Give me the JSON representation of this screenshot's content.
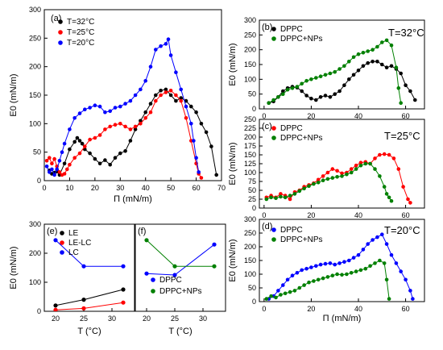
{
  "chart_data": [
    {
      "panel": "(a)",
      "type": "line",
      "xlabel": "Π (mN/m)",
      "ylabel": "E0 (mN/m)",
      "xlim": [
        0,
        70
      ],
      "ylim": [
        0,
        300
      ],
      "xticks": [
        "0",
        "10",
        "20",
        "30",
        "40",
        "50",
        "60",
        "70"
      ],
      "yticks": [
        "0",
        "50",
        "100",
        "150",
        "200",
        "250",
        "300"
      ],
      "legend_position": "top-left",
      "series": [
        {
          "name": "T=32°C",
          "color": "#000000",
          "x": [
            2,
            3,
            4,
            5,
            6,
            8,
            10,
            12,
            13,
            14,
            15,
            16,
            18,
            20,
            22,
            24,
            26,
            28,
            30,
            32,
            34,
            36,
            38,
            40,
            42,
            44,
            46,
            48,
            50,
            52,
            54,
            56,
            58,
            60,
            62,
            64,
            66,
            68
          ],
          "y": [
            18,
            12,
            14,
            16,
            10,
            30,
            55,
            68,
            75,
            70,
            65,
            55,
            48,
            38,
            30,
            36,
            28,
            40,
            48,
            52,
            70,
            90,
            105,
            120,
            135,
            150,
            158,
            160,
            150,
            140,
            145,
            140,
            130,
            120,
            100,
            85,
            60,
            10
          ]
        },
        {
          "name": "T=25°C",
          "color": "#ff0000",
          "x": [
            1,
            2,
            3,
            4,
            5,
            6,
            7,
            8,
            9,
            10,
            12,
            14,
            16,
            18,
            20,
            22,
            24,
            26,
            28,
            30,
            32,
            34,
            36,
            38,
            40,
            42,
            44,
            46,
            48,
            50,
            52,
            54,
            56,
            58,
            60,
            61,
            62
          ],
          "y": [
            35,
            40,
            30,
            38,
            25,
            15,
            10,
            12,
            20,
            28,
            40,
            48,
            60,
            72,
            75,
            80,
            90,
            95,
            98,
            100,
            95,
            90,
            95,
            100,
            110,
            120,
            140,
            150,
            155,
            158,
            150,
            140,
            110,
            70,
            30,
            12,
            5
          ]
        },
        {
          "name": "T=20°C",
          "color": "#0000ff",
          "x": [
            1,
            2,
            3,
            4,
            5,
            6,
            7,
            8,
            10,
            12,
            14,
            16,
            18,
            20,
            22,
            24,
            26,
            28,
            30,
            32,
            34,
            36,
            38,
            40,
            42,
            44,
            46,
            48,
            49,
            50,
            52,
            54,
            56,
            58,
            59,
            60,
            61
          ],
          "y": [
            25,
            15,
            20,
            10,
            20,
            35,
            50,
            65,
            90,
            110,
            118,
            125,
            128,
            132,
            130,
            120,
            122,
            128,
            130,
            135,
            140,
            150,
            160,
            175,
            200,
            230,
            236,
            240,
            248,
            220,
            190,
            160,
            130,
            100,
            70,
            40,
            15
          ]
        }
      ]
    },
    {
      "panel": "(b)",
      "type": "line",
      "title": "T=32°C",
      "xlabel": "",
      "ylabel": "E0 (mN/m)",
      "xlim": [
        -2,
        68
      ],
      "ylim": [
        0,
        300
      ],
      "xticks": [
        "0",
        "20",
        "40",
        "60"
      ],
      "yticks": [
        "0",
        "50",
        "100",
        "150",
        "200",
        "250",
        "300"
      ],
      "legend_position": "top-left",
      "series": [
        {
          "name": "DPPC",
          "color": "#000000",
          "x": [
            2,
            4,
            6,
            8,
            10,
            12,
            14,
            16,
            18,
            20,
            22,
            24,
            26,
            28,
            30,
            32,
            34,
            36,
            38,
            40,
            42,
            44,
            46,
            48,
            50,
            52,
            54,
            56,
            58,
            60,
            62,
            64
          ],
          "y": [
            20,
            25,
            40,
            60,
            70,
            75,
            72,
            60,
            45,
            35,
            30,
            40,
            45,
            40,
            50,
            60,
            80,
            100,
            115,
            130,
            145,
            155,
            160,
            160,
            150,
            140,
            145,
            135,
            120,
            80,
            60,
            30
          ]
        },
        {
          "name": "DPPC+NPs",
          "color": "#008000",
          "x": [
            2,
            4,
            6,
            8,
            10,
            12,
            14,
            16,
            18,
            20,
            22,
            24,
            26,
            28,
            30,
            32,
            34,
            36,
            38,
            40,
            42,
            44,
            46,
            48,
            50,
            52,
            54,
            56,
            57,
            58
          ],
          "y": [
            20,
            30,
            40,
            50,
            65,
            70,
            75,
            85,
            95,
            100,
            105,
            110,
            115,
            120,
            125,
            135,
            145,
            160,
            175,
            185,
            190,
            195,
            200,
            210,
            225,
            232,
            215,
            140,
            70,
            20
          ]
        }
      ]
    },
    {
      "panel": "(c)",
      "type": "line",
      "title": "T=25°C",
      "xlabel": "",
      "ylabel": "E0 (mN/m)",
      "xlim": [
        -2,
        68
      ],
      "ylim": [
        0,
        250
      ],
      "xticks": [
        "0",
        "20",
        "40",
        "60"
      ],
      "yticks": [
        "0",
        "25",
        "50",
        "75",
        "100",
        "125",
        "150",
        "175",
        "200",
        "225",
        "250"
      ],
      "legend_position": "top-left",
      "series": [
        {
          "name": "DPPC",
          "color": "#ff0000",
          "x": [
            1,
            3,
            5,
            7,
            9,
            11,
            13,
            15,
            17,
            19,
            21,
            23,
            25,
            27,
            29,
            31,
            33,
            35,
            37,
            39,
            41,
            43,
            45,
            47,
            49,
            51,
            53,
            55,
            57,
            59,
            61,
            62
          ],
          "y": [
            30,
            35,
            30,
            40,
            35,
            25,
            45,
            50,
            60,
            65,
            70,
            80,
            90,
            100,
            110,
            105,
            98,
            100,
            110,
            120,
            128,
            130,
            125,
            140,
            150,
            152,
            150,
            140,
            110,
            60,
            25,
            15
          ]
        },
        {
          "name": "DPPC+NPs",
          "color": "#008000",
          "x": [
            1,
            3,
            5,
            7,
            9,
            11,
            13,
            15,
            17,
            19,
            21,
            23,
            25,
            27,
            29,
            31,
            33,
            35,
            37,
            39,
            41,
            43,
            45,
            47,
            49,
            51,
            52,
            53,
            54
          ],
          "y": [
            25,
            30,
            28,
            32,
            30,
            35,
            40,
            48,
            55,
            62,
            68,
            72,
            78,
            82,
            85,
            88,
            90,
            95,
            100,
            110,
            120,
            125,
            125,
            110,
            90,
            60,
            40,
            30,
            20
          ]
        }
      ]
    },
    {
      "panel": "(d)",
      "type": "line",
      "title": "T=20°C",
      "xlabel": "Π (mN/m)",
      "ylabel": "E0 (mN/m)",
      "xlim": [
        -2,
        68
      ],
      "ylim": [
        0,
        300
      ],
      "xticks": [
        "0",
        "20",
        "40",
        "60"
      ],
      "yticks": [
        "0",
        "50",
        "100",
        "150",
        "200",
        "250",
        "300"
      ],
      "legend_position": "top-left",
      "series": [
        {
          "name": "DPPC",
          "color": "#0000ff",
          "x": [
            2,
            4,
            6,
            8,
            10,
            12,
            14,
            16,
            18,
            20,
            22,
            24,
            26,
            28,
            30,
            32,
            34,
            36,
            38,
            40,
            42,
            44,
            46,
            48,
            50,
            52,
            54,
            56,
            58,
            60,
            62,
            63
          ],
          "y": [
            10,
            20,
            40,
            60,
            80,
            95,
            105,
            115,
            120,
            125,
            130,
            135,
            138,
            140,
            135,
            140,
            145,
            150,
            160,
            170,
            190,
            210,
            225,
            235,
            245,
            210,
            170,
            140,
            110,
            80,
            40,
            10
          ]
        },
        {
          "name": "DPPC+NPs",
          "color": "#008000",
          "x": [
            1,
            3,
            5,
            7,
            9,
            11,
            13,
            15,
            17,
            19,
            21,
            23,
            25,
            27,
            29,
            31,
            33,
            35,
            37,
            39,
            41,
            43,
            45,
            47,
            49,
            51,
            52,
            53
          ],
          "y": [
            10,
            20,
            15,
            25,
            30,
            35,
            40,
            50,
            60,
            70,
            75,
            80,
            85,
            90,
            95,
            100,
            98,
            100,
            105,
            110,
            115,
            120,
            130,
            140,
            150,
            140,
            80,
            10
          ]
        }
      ]
    },
    {
      "panel": "(e)",
      "type": "line",
      "xlabel": "T (°C)",
      "ylabel": "E0 (mN/m)",
      "xlim": [
        18,
        34
      ],
      "ylim": [
        0,
        300
      ],
      "xticks": [
        "20",
        "25",
        "30"
      ],
      "yticks": [
        "0",
        "100",
        "200",
        "300"
      ],
      "legend_position": "top-left",
      "series": [
        {
          "name": "LE",
          "color": "#000000",
          "x": [
            20,
            25,
            32
          ],
          "y": [
            20,
            40,
            75
          ]
        },
        {
          "name": "LE-LC",
          "color": "#ff0000",
          "x": [
            20,
            25,
            32
          ],
          "y": [
            5,
            10,
            30
          ]
        },
        {
          "name": "LC",
          "color": "#0000ff",
          "x": [
            20,
            25,
            32
          ],
          "y": [
            245,
            155,
            155
          ]
        }
      ]
    },
    {
      "panel": "(f)",
      "type": "line",
      "xlabel": "T (°C)",
      "ylabel": "",
      "xlim": [
        18,
        34
      ],
      "ylim": [
        0,
        300
      ],
      "xticks": [
        "20",
        "25",
        "30"
      ],
      "yticks": [],
      "legend_position": "bottom-left",
      "series": [
        {
          "name": "DPPC",
          "color": "#0000ff",
          "x": [
            20,
            25,
            32
          ],
          "y": [
            130,
            125,
            230
          ]
        },
        {
          "name": "DPPC+NPs",
          "color": "#008000",
          "x": [
            20,
            25,
            32
          ],
          "y": [
            245,
            155,
            155
          ]
        }
      ]
    }
  ]
}
